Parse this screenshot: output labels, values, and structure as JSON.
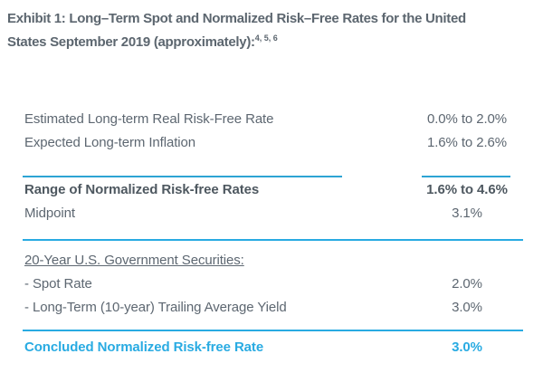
{
  "exhibit": {
    "title_line1": "Exhibit 1: Long–Term Spot and Normalized Risk–Free Rates for the United",
    "title_line2": "States September 2019 (approximately):",
    "footnote_refs": "4, 5, 6"
  },
  "table": {
    "rows": [
      {
        "label": "Estimated Long-term Real Risk-Free Rate",
        "value": "0.0% to 2.0%",
        "style": "normal"
      },
      {
        "label": "Expected Long-term Inflation",
        "value": "1.6% to 2.6%",
        "style": "normal"
      },
      {
        "label": "Range of Normalized Risk-free Rates",
        "value": "1.6% to 4.6%",
        "style": "bold"
      },
      {
        "label": "Midpoint",
        "value": "3.1%",
        "style": "normal"
      },
      {
        "label": "20-Year U.S. Government Securities:",
        "value": "",
        "style": "underlined-header"
      },
      {
        "label": "- Spot Rate",
        "value": "2.0%",
        "style": "normal"
      },
      {
        "label": "- Long-Term (10-year) Trailing Average Yield",
        "value": "3.0%",
        "style": "normal"
      },
      {
        "label": "Concluded Normalized Risk-free Rate",
        "value": "3.0%",
        "style": "concluded"
      }
    ]
  },
  "colors": {
    "accent_cyan": "#29abe2",
    "body_text": "#5d6771",
    "bold_text": "#4e5860",
    "title_text": "#5c666f"
  }
}
